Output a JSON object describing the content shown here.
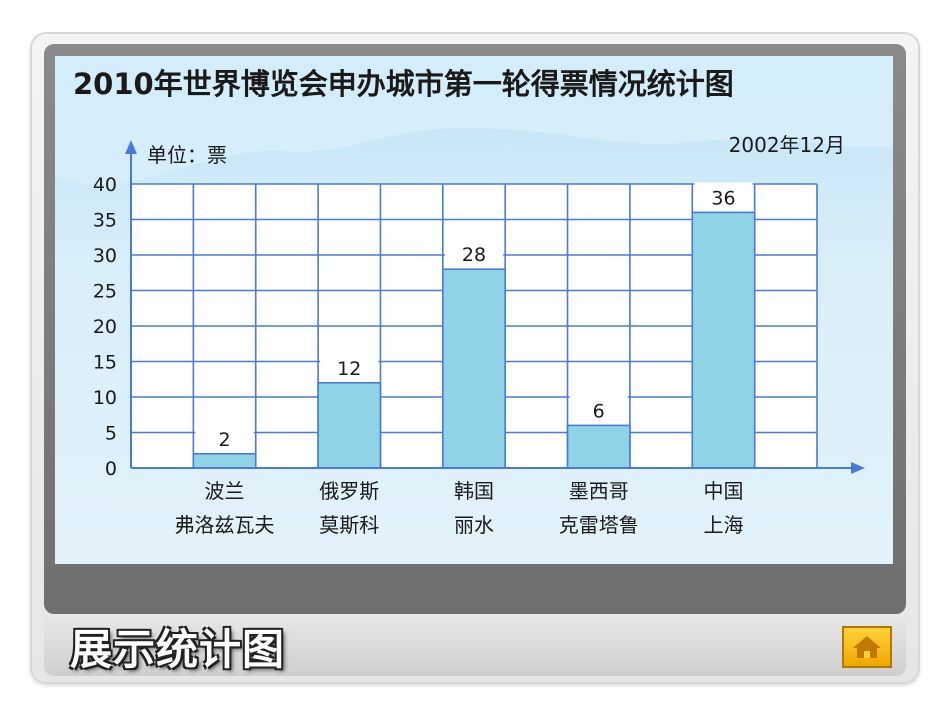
{
  "slide": {
    "caption": "展示统计图",
    "home_icon": "home-icon"
  },
  "chart_data": {
    "type": "bar",
    "title": "2010年世界博览会申办城市第一轮得票情况统计图",
    "date_note": "2002年12月",
    "ylabel": "单位：票",
    "ylim": [
      0,
      40
    ],
    "yticks": [
      0,
      5,
      10,
      15,
      20,
      25,
      30,
      35,
      40
    ],
    "categories": [
      [
        "波兰",
        "弗洛兹瓦夫"
      ],
      [
        "俄罗斯",
        "莫斯科"
      ],
      [
        "韩国",
        "丽水"
      ],
      [
        "墨西哥",
        "克雷塔鲁"
      ],
      [
        "中国",
        "上海"
      ]
    ],
    "values": [
      2,
      12,
      28,
      6,
      36
    ],
    "grid": true,
    "colors": {
      "bar": "#8fd3e6",
      "grid": "#4a7ad8",
      "axis": "#4a7ad8"
    }
  }
}
